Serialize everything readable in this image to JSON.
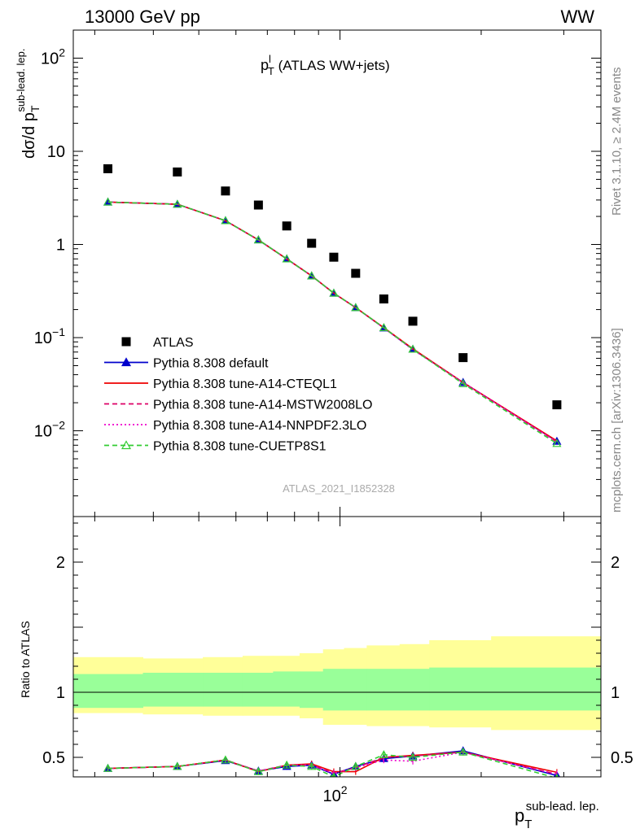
{
  "header": {
    "left": "13000 GeV pp",
    "right": "WW"
  },
  "plot_title": {
    "main": "p",
    "sup": "l",
    "sub": "T",
    "rest": " (ATLAS WW+jets)"
  },
  "side_text": {
    "rivet": "Rivet 3.1.10, ≥ 2.4M events",
    "mcplots": "mcplots.cern.ch [arXiv:1306.3436]"
  },
  "watermark": "ATLAS_2021_I1852328",
  "axes": {
    "y_main": {
      "prefix": "dσ/d p",
      "sub": "T",
      "sup": "sub-lead. lep."
    },
    "y_ratio": "Ratio to ATLAS",
    "x": {
      "main": "p",
      "sub": "T",
      "sup": "sub-lead. lep."
    },
    "main_ticks": [
      {
        "v": 100,
        "base": "10",
        "exp": "2"
      },
      {
        "v": 10,
        "base": "10",
        "exp": ""
      },
      {
        "v": 1,
        "base": "1",
        "exp": ""
      },
      {
        "v": 0.1,
        "base": "10",
        "exp": "−1"
      },
      {
        "v": 0.01,
        "base": "10",
        "exp": "−2"
      }
    ],
    "ratio_ticks": [
      {
        "v": 2,
        "label": "2"
      },
      {
        "v": 1,
        "label": "1"
      },
      {
        "v": 0.5,
        "label": "0.5"
      }
    ],
    "x_ticks": [
      {
        "v": 100,
        "base": "10",
        "exp": "2"
      }
    ]
  },
  "legend": [
    {
      "label": "ATLAS",
      "color": "#000000",
      "style": "square"
    },
    {
      "label": "Pythia 8.308 default",
      "color": "#0000cc",
      "style": "line-triangle"
    },
    {
      "label": "Pythia 8.308 tune-A14-CTEQL1",
      "color": "#ee0000",
      "style": "line"
    },
    {
      "label": "Pythia 8.308 tune-A14-MSTW2008LO",
      "color": "#dd0066",
      "style": "dashed"
    },
    {
      "label": "Pythia 8.308 tune-A14-NNPDF2.3LO",
      "color": "#ee00cc",
      "style": "dotted"
    },
    {
      "label": "Pythia 8.308 tune-CUETP8S1",
      "color": "#33cc33",
      "style": "dashed-open-triangle"
    }
  ],
  "chart_data": {
    "type": "scatter",
    "x_scale": "log",
    "xlim": [
      27,
      360
    ],
    "main": {
      "y_scale": "log",
      "ylim": [
        0.0012,
        200
      ],
      "x": [
        32,
        45,
        57,
        67,
        77,
        87,
        97,
        108,
        124,
        143,
        183,
        290
      ],
      "series": [
        {
          "name": "ATLAS",
          "values": [
            6.5,
            6.0,
            3.75,
            2.65,
            1.58,
            1.03,
            0.73,
            0.49,
            0.26,
            0.15,
            0.061,
            0.019
          ]
        },
        {
          "name": "Pythia 8.308 default",
          "values": [
            2.85,
            2.7,
            1.8,
            1.12,
            0.7,
            0.46,
            0.3,
            0.21,
            0.127,
            0.075,
            0.033,
            0.0077
          ]
        },
        {
          "name": "Pythia 8.308 tune-A14-CTEQL1",
          "values": [
            2.85,
            2.7,
            1.8,
            1.12,
            0.7,
            0.46,
            0.3,
            0.21,
            0.128,
            0.076,
            0.033,
            0.0078
          ]
        },
        {
          "name": "Pythia 8.308 tune-A14-MSTW2008LO",
          "values": [
            2.85,
            2.7,
            1.8,
            1.12,
            0.7,
            0.46,
            0.3,
            0.21,
            0.128,
            0.075,
            0.033,
            0.0076
          ]
        },
        {
          "name": "Pythia 8.308 tune-A14-NNPDF2.3LO",
          "values": [
            2.85,
            2.7,
            1.8,
            1.12,
            0.7,
            0.46,
            0.3,
            0.21,
            0.127,
            0.074,
            0.033,
            0.0076
          ]
        },
        {
          "name": "Pythia 8.308 tune-CUETP8S1",
          "values": [
            2.85,
            2.7,
            1.8,
            1.12,
            0.7,
            0.46,
            0.3,
            0.21,
            0.128,
            0.075,
            0.032,
            0.0073
          ]
        }
      ]
    },
    "ratio": {
      "ylim": [
        0.35,
        2.35
      ],
      "reference": 1,
      "band_edges": [
        27,
        38,
        51,
        62,
        72,
        82,
        92,
        102,
        114,
        134,
        155,
        210,
        360
      ],
      "green_band": [
        [
          0.88,
          1.14
        ],
        [
          0.89,
          1.15
        ],
        [
          0.89,
          1.15
        ],
        [
          0.89,
          1.15
        ],
        [
          0.89,
          1.16
        ],
        [
          0.88,
          1.16
        ],
        [
          0.86,
          1.18
        ],
        [
          0.86,
          1.18
        ],
        [
          0.86,
          1.18
        ],
        [
          0.86,
          1.18
        ],
        [
          0.86,
          1.19
        ],
        [
          0.86,
          1.19
        ]
      ],
      "yellow_band": [
        [
          0.84,
          1.27
        ],
        [
          0.83,
          1.26
        ],
        [
          0.82,
          1.27
        ],
        [
          0.82,
          1.28
        ],
        [
          0.82,
          1.28
        ],
        [
          0.8,
          1.3
        ],
        [
          0.75,
          1.33
        ],
        [
          0.75,
          1.34
        ],
        [
          0.74,
          1.36
        ],
        [
          0.74,
          1.37
        ],
        [
          0.73,
          1.4
        ],
        [
          0.71,
          1.43
        ]
      ],
      "series": [
        {
          "name": "Pythia 8.308 default",
          "values": [
            0.415,
            0.43,
            0.475,
            0.395,
            0.43,
            0.44,
            0.37,
            0.43,
            0.49,
            0.51,
            0.55,
            0.36
          ]
        },
        {
          "name": "Pythia 8.308 tune-A14-CTEQL1",
          "values": [
            0.415,
            0.43,
            0.48,
            0.39,
            0.44,
            0.45,
            0.39,
            0.39,
            0.5,
            0.515,
            0.54,
            0.385
          ]
        },
        {
          "name": "Pythia 8.308 tune-A14-MSTW2008LO",
          "values": [
            0.415,
            0.43,
            0.48,
            0.395,
            0.44,
            0.44,
            0.38,
            0.42,
            0.5,
            0.51,
            0.54,
            0.37
          ]
        },
        {
          "name": "Pythia 8.308 tune-A14-NNPDF2.3LO",
          "values": [
            0.415,
            0.43,
            0.48,
            0.395,
            0.44,
            0.44,
            0.375,
            0.42,
            0.48,
            0.47,
            0.54,
            0.37
          ]
        },
        {
          "name": "Pythia 8.308 tune-CUETP8S1",
          "values": [
            0.415,
            0.43,
            0.48,
            0.39,
            0.44,
            0.43,
            0.35,
            0.43,
            0.52,
            0.5,
            0.54,
            0.34
          ]
        }
      ]
    }
  }
}
